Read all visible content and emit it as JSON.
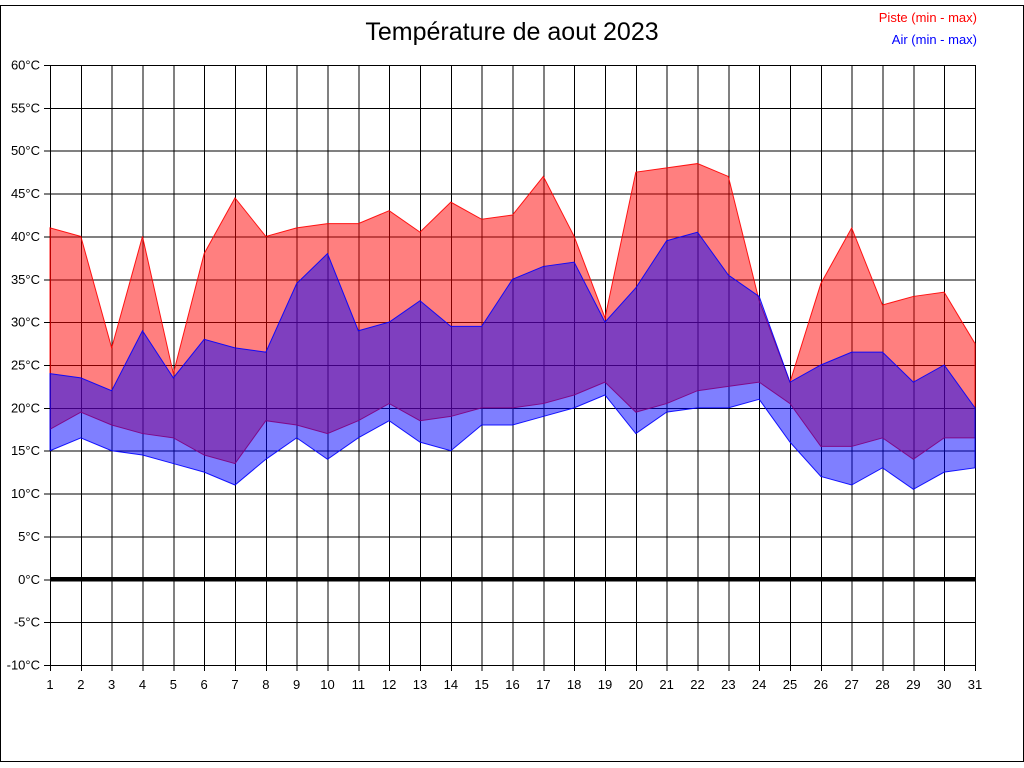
{
  "title": "Température de aout 2023",
  "legend": [
    {
      "label": "Piste (min - max)",
      "color": "#ff0000"
    },
    {
      "label": "Air (min - max)",
      "color": "#0000ff"
    }
  ],
  "chart_data": {
    "type": "area",
    "title": "Température de aout 2023",
    "xlabel": "",
    "ylabel": "",
    "y_unit": "°C",
    "ylim": [
      -10,
      60
    ],
    "ytick_step": 5,
    "grid": true,
    "zero_line_value": 0,
    "legend_position": "top-right",
    "days": [
      1,
      2,
      3,
      4,
      5,
      6,
      7,
      8,
      9,
      10,
      11,
      12,
      13,
      14,
      15,
      16,
      17,
      18,
      19,
      20,
      21,
      22,
      23,
      24,
      25,
      26,
      27,
      28,
      29,
      30,
      31
    ],
    "series": [
      {
        "name": "Piste (min - max)",
        "fill_color": "#ff0000",
        "fill_opacity": 0.5,
        "stroke_color": "#ff0000",
        "min": [
          17.5,
          19.5,
          18,
          17,
          16.5,
          14.5,
          13.5,
          18.5,
          18,
          17,
          18.5,
          20.5,
          18.5,
          19,
          20,
          20,
          20.5,
          21.5,
          23,
          19.5,
          20.5,
          22,
          22.5,
          23,
          20.5,
          15.5,
          15.5,
          16.5,
          14,
          16.5,
          16.5
        ],
        "max": [
          41,
          40,
          27,
          40,
          24,
          38,
          44.5,
          40,
          41,
          41.5,
          41.5,
          43,
          40.5,
          44,
          42,
          42.5,
          47,
          40,
          30.5,
          47.5,
          48,
          48.5,
          47,
          32.5,
          23,
          34.5,
          41,
          32,
          33,
          33.5,
          27.5
        ]
      },
      {
        "name": "Air (min - max)",
        "fill_color": "#0000ff",
        "fill_opacity": 0.5,
        "stroke_color": "#0000ff",
        "min": [
          15,
          16.5,
          15,
          14.5,
          13.5,
          12.5,
          11,
          14,
          16.5,
          14,
          16.5,
          18.5,
          16,
          15,
          18,
          18,
          19,
          20,
          21.5,
          17,
          19.5,
          20,
          20,
          21,
          16,
          12,
          11,
          13,
          10.5,
          12.5,
          13
        ],
        "max": [
          24,
          23.5,
          22,
          29,
          23.5,
          28,
          27,
          26.5,
          34.5,
          38,
          29,
          30,
          32.5,
          29.5,
          29.5,
          35,
          36.5,
          37,
          30,
          34,
          39.5,
          40.5,
          35.5,
          33,
          23,
          25,
          26.5,
          26.5,
          23,
          25,
          20
        ]
      }
    ]
  }
}
